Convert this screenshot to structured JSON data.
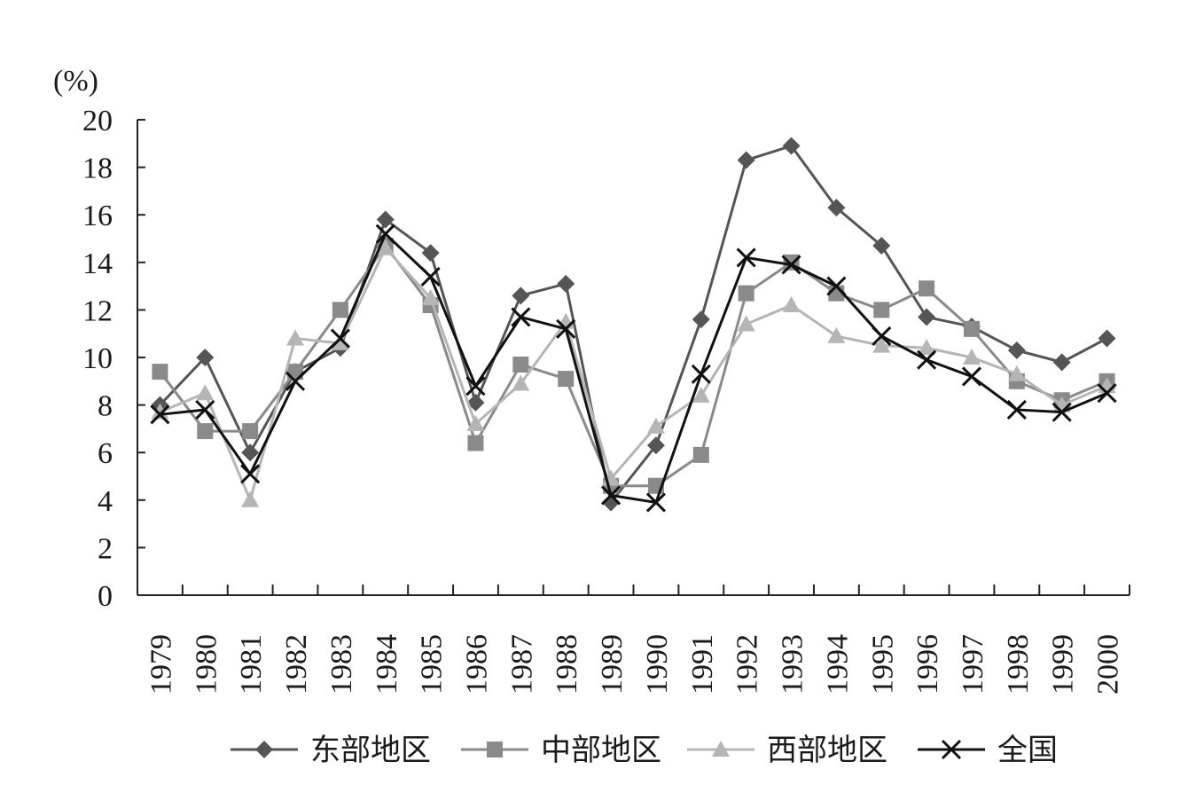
{
  "chart_data": {
    "type": "line",
    "unit_label": "(%)",
    "ylim": [
      0,
      20
    ],
    "yticks": [
      "0",
      "2",
      "4",
      "6",
      "8",
      "10",
      "12",
      "14",
      "16",
      "18",
      "20"
    ],
    "x": [
      "1979",
      "1980",
      "1981",
      "1982",
      "1983",
      "1984",
      "1985",
      "1986",
      "1987",
      "1988",
      "1989",
      "1990",
      "1991",
      "1992",
      "1993",
      "1994",
      "1995",
      "1996",
      "1997",
      "1998",
      "1999",
      "2000"
    ],
    "grid": false,
    "legend_position": "bottom",
    "series": [
      {
        "name": "东部地区",
        "marker": "diamond",
        "color": "#555555",
        "values": [
          8.0,
          10.0,
          6.0,
          9.4,
          10.4,
          15.8,
          14.4,
          8.1,
          12.6,
          13.1,
          3.9,
          6.3,
          11.6,
          18.3,
          18.9,
          16.3,
          14.7,
          11.7,
          11.3,
          10.3,
          9.8,
          10.8
        ]
      },
      {
        "name": "中部地区",
        "marker": "square",
        "color": "#8a8a8a",
        "values": [
          9.4,
          6.9,
          6.9,
          9.4,
          12.0,
          14.7,
          12.2,
          6.4,
          9.7,
          9.1,
          4.6,
          4.6,
          5.9,
          12.7,
          14.0,
          12.7,
          12.0,
          12.9,
          11.2,
          9.0,
          8.2,
          9.0
        ]
      },
      {
        "name": "西部地区",
        "marker": "triangle",
        "color": "#b5b5b5",
        "values": [
          7.7,
          8.5,
          4.0,
          10.8,
          10.6,
          14.6,
          12.5,
          7.2,
          8.9,
          11.5,
          4.9,
          7.1,
          8.4,
          11.4,
          12.2,
          10.9,
          10.5,
          10.4,
          10.0,
          9.3,
          8.0,
          8.8
        ]
      },
      {
        "name": "全国",
        "marker": "x",
        "color": "#111111",
        "values": [
          7.6,
          7.8,
          5.1,
          9.0,
          10.8,
          15.2,
          13.4,
          8.8,
          11.7,
          11.2,
          4.2,
          3.9,
          9.3,
          14.2,
          13.9,
          13.0,
          10.9,
          9.9,
          9.2,
          7.8,
          7.7,
          8.5
        ]
      }
    ]
  }
}
